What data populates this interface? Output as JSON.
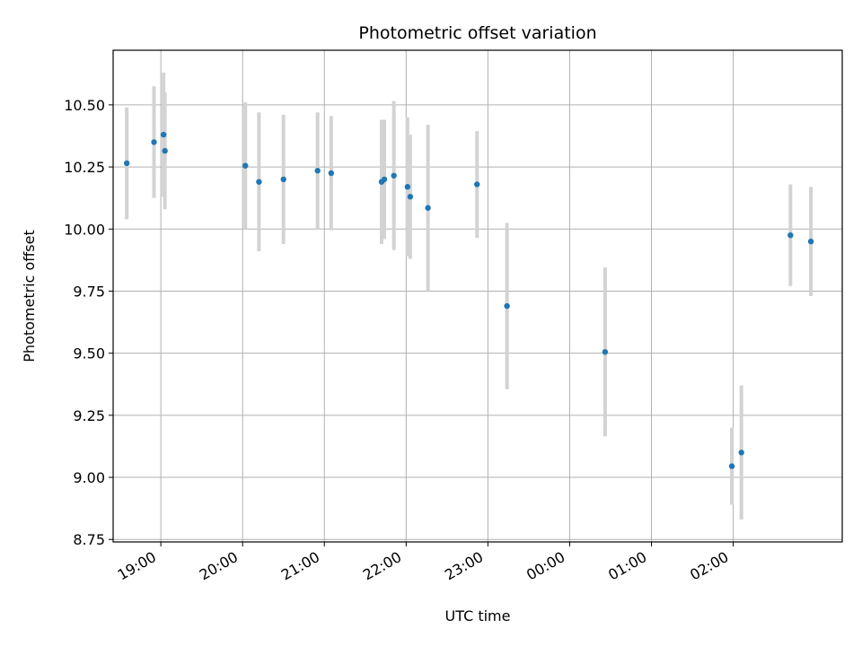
{
  "chart_data": {
    "type": "scatter",
    "title": "Photometric offset variation",
    "xlabel": "UTC time",
    "ylabel": "Photometric offset",
    "grid": true,
    "legend": "none",
    "xlim": [
      "18:25",
      "27:20"
    ],
    "ylim": [
      8.74,
      10.72
    ],
    "x_ticks": [
      {
        "t": "19:00",
        "label": "19:00"
      },
      {
        "t": "20:00",
        "label": "20:00"
      },
      {
        "t": "21:00",
        "label": "21:00"
      },
      {
        "t": "22:00",
        "label": "22:00"
      },
      {
        "t": "23:00",
        "label": "23:00"
      },
      {
        "t": "24:00",
        "label": "00:00"
      },
      {
        "t": "25:00",
        "label": "01:00"
      },
      {
        "t": "26:00",
        "label": "02:00"
      }
    ],
    "y_ticks": [
      8.75,
      9.0,
      9.25,
      9.5,
      9.75,
      10.0,
      10.25,
      10.5
    ],
    "y_tick_labels": [
      "8.75",
      "9.00",
      "9.25",
      "9.50",
      "9.75",
      "10.00",
      "10.25",
      "10.50"
    ],
    "colors": {
      "points": "#1f77b4",
      "errorbars": "#d3d3d3",
      "grid": "#b0b0b0"
    },
    "points": [
      {
        "t": "18:35",
        "y": 10.265,
        "err": 0.225
      },
      {
        "t": "18:55",
        "y": 10.35,
        "err": 0.225
      },
      {
        "t": "19:02",
        "y": 10.38,
        "err": 0.25
      },
      {
        "t": "19:03",
        "y": 10.315,
        "err": 0.235
      },
      {
        "t": "20:02",
        "y": 10.255,
        "err": 0.255
      },
      {
        "t": "20:12",
        "y": 10.19,
        "err": 0.28
      },
      {
        "t": "20:30",
        "y": 10.2,
        "err": 0.26
      },
      {
        "t": "20:55",
        "y": 10.235,
        "err": 0.235
      },
      {
        "t": "21:05",
        "y": 10.225,
        "err": 0.23
      },
      {
        "t": "21:42",
        "y": 10.19,
        "err": 0.25
      },
      {
        "t": "21:44",
        "y": 10.2,
        "err": 0.24
      },
      {
        "t": "21:51",
        "y": 10.215,
        "err": 0.3
      },
      {
        "t": "22:01",
        "y": 10.17,
        "err": 0.28
      },
      {
        "t": "22:03",
        "y": 10.13,
        "err": 0.25
      },
      {
        "t": "22:16",
        "y": 10.085,
        "err": 0.335
      },
      {
        "t": "22:52",
        "y": 10.18,
        "err": 0.215
      },
      {
        "t": "23:14",
        "y": 9.69,
        "err": 0.335
      },
      {
        "t": "24:26",
        "y": 9.505,
        "err": 0.34
      },
      {
        "t": "25:59",
        "y": 9.045,
        "err": 0.155
      },
      {
        "t": "26:06",
        "y": 9.1,
        "err": 0.27
      },
      {
        "t": "26:42",
        "y": 9.975,
        "err": 0.205
      },
      {
        "t": "26:57",
        "y": 9.95,
        "err": 0.22
      }
    ]
  }
}
